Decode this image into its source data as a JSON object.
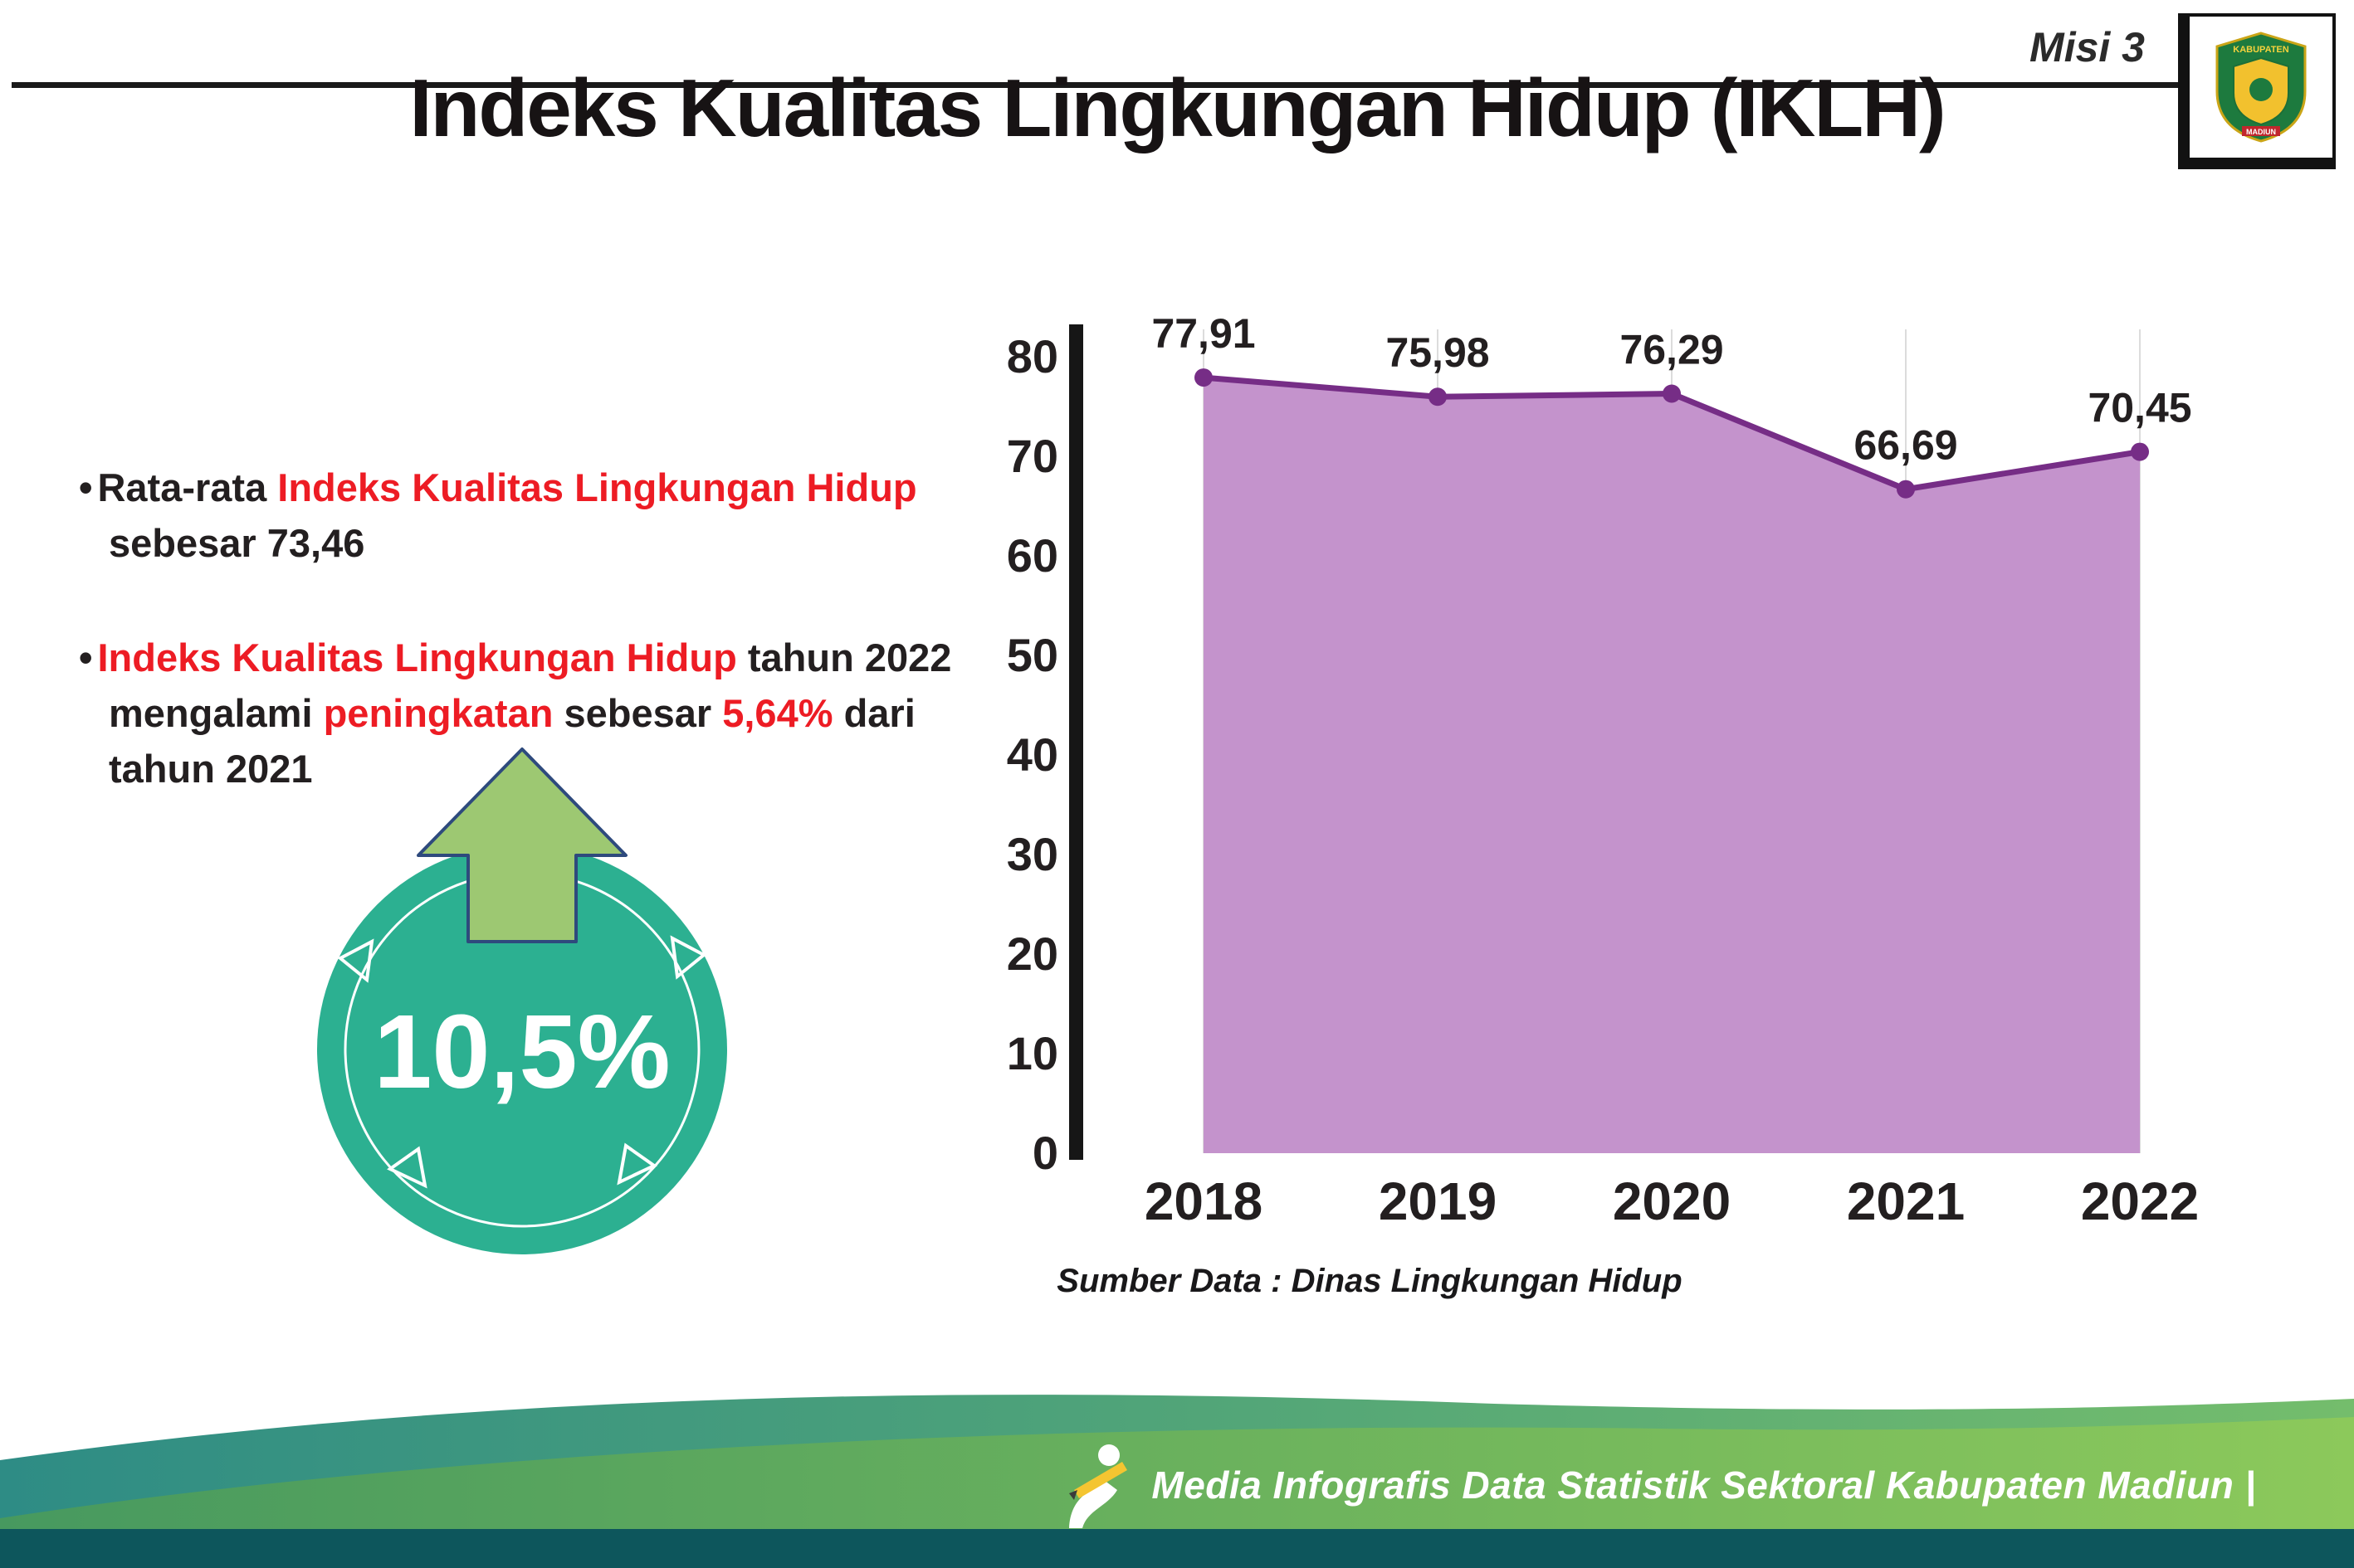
{
  "header": {
    "misi_label": "Misi 3",
    "logo": {
      "top_text": "KABUPATEN",
      "bottom_text": "MADIUN",
      "shield_color": "#1d7a3e",
      "accent_color": "#f2c12e",
      "ribbon_color": "#c1272d"
    }
  },
  "title": "Indeks Kualitas Lingkungan Hidup (IKLH)",
  "bullets": [
    {
      "segments": [
        {
          "text": "Rata-rata ",
          "color": "#231f20"
        },
        {
          "text": "Indeks Kualitas Lingkungan Hidup",
          "color": "#ed1c24"
        },
        {
          "text": " sebesar 73,46",
          "color": "#231f20"
        }
      ]
    },
    {
      "segments": [
        {
          "text": "Indeks Kualitas Lingkungan Hidup",
          "color": "#ed1c24"
        },
        {
          "text": " tahun 2022 mengalami ",
          "color": "#231f20"
        },
        {
          "text": "peningkatan",
          "color": "#ed1c24"
        },
        {
          "text": " sebesar ",
          "color": "#231f20"
        },
        {
          "text": "5,64%",
          "color": "#ed1c24"
        },
        {
          "text": " dari tahun 2021",
          "color": "#231f20"
        }
      ]
    }
  ],
  "badge": {
    "value": "10,5%",
    "circle_color": "#2cb091",
    "arrow_color": "#9dc872",
    "arrow_icon": "up-arrow-icon"
  },
  "chart_data": {
    "type": "area",
    "title": "Indeks Kualitas Lingkungan Hidup (IKLH)",
    "categories": [
      "2018",
      "2019",
      "2020",
      "2021",
      "2022"
    ],
    "values": [
      77.91,
      75.98,
      76.29,
      66.69,
      70.45
    ],
    "value_labels": [
      "77,91",
      "75,98",
      "76,29",
      "66,69",
      "70,45"
    ],
    "xlabel": "",
    "ylabel": "",
    "ylim": [
      0,
      80
    ],
    "yticks": [
      0,
      10,
      20,
      30,
      40,
      50,
      60,
      70,
      80
    ],
    "grid": "vertical",
    "grid_color": "#dcdcdc",
    "area_color": "#c493cc",
    "line_color": "#762d86",
    "point_color": "#762d86",
    "legend": "none",
    "source_note": "Sumber Data : Dinas Lingkungan Hidup"
  },
  "footer": {
    "text": "Media Infografis Data Statistik Sektoral Kabupaten Madiun |",
    "icon": "writer-icon",
    "colors": {
      "teal_left": "#2e8c85",
      "teal_right": "#74bd6c",
      "green_left": "#47995f",
      "green_right": "#8cc95b",
      "strip": "#0d565c"
    }
  }
}
